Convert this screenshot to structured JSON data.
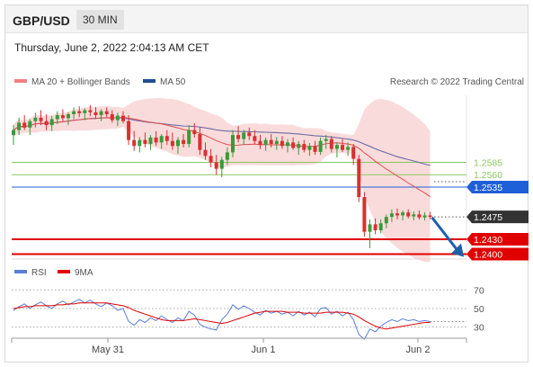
{
  "header": {
    "pair": "GBP/USD",
    "timeframe": "30 MIN"
  },
  "timestamp": "Thursday, June 2, 2022 2:04:13 AM CET",
  "legend": {
    "ma_bollinger": "MA 20 + Bollinger Bands",
    "ma50": "MA 50",
    "credit": "Research © 2022 Trading Central"
  },
  "rsi_legend": {
    "rsi": "RSI",
    "ma9": "9MA"
  },
  "colors": {
    "bollinger": "#f6c8c8",
    "ma20": "#e05050",
    "ma50": "#6a6aa8",
    "support": "#e00000",
    "pivot": "#1f5fd8",
    "resistance": "#8cc860",
    "up": "#3a9a3a",
    "down": "#d93030",
    "rsi": "#5b7fd9",
    "ma9": "#e00000"
  },
  "chart_data": [
    {
      "type": "candlestick",
      "title": "GBP/USD",
      "timeframe": "30 MIN",
      "x_tick_labels": [
        "May 31",
        "Jun 1",
        "Jun 2"
      ],
      "ylim": [
        1.239,
        1.272
      ],
      "price_levels": [
        {
          "value": 1.2585,
          "label": "1.2585",
          "kind": "resistance"
        },
        {
          "value": 1.256,
          "label": "1.2560",
          "kind": "resistance"
        },
        {
          "value": 1.2535,
          "label": "1.2535",
          "kind": "pivot"
        },
        {
          "value": 1.2475,
          "label": "1.2475",
          "kind": "last"
        },
        {
          "value": 1.243,
          "label": "1.2430",
          "kind": "support"
        },
        {
          "value": 1.24,
          "label": "1.2400",
          "kind": "support"
        }
      ],
      "ohlc": [
        [
          1.264,
          1.266,
          1.262,
          1.265
        ],
        [
          1.265,
          1.2675,
          1.264,
          1.2665
        ],
        [
          1.2665,
          1.268,
          1.265,
          1.2655
        ],
        [
          1.2655,
          1.2672,
          1.264,
          1.2668
        ],
        [
          1.2668,
          1.2685,
          1.2655,
          1.2675
        ],
        [
          1.2675,
          1.269,
          1.266,
          1.2668
        ],
        [
          1.2668,
          1.2682,
          1.265,
          1.266
        ],
        [
          1.266,
          1.2678,
          1.2648,
          1.2672
        ],
        [
          1.2672,
          1.2688,
          1.2662,
          1.268
        ],
        [
          1.268,
          1.2692,
          1.2668,
          1.2674
        ],
        [
          1.2674,
          1.2686,
          1.266,
          1.2682
        ],
        [
          1.2682,
          1.2696,
          1.2672,
          1.2688
        ],
        [
          1.2688,
          1.2698,
          1.2676,
          1.2684
        ],
        [
          1.2684,
          1.2694,
          1.267,
          1.269
        ],
        [
          1.269,
          1.27,
          1.2678,
          1.2686
        ],
        [
          1.2686,
          1.2696,
          1.2672,
          1.268
        ],
        [
          1.268,
          1.2692,
          1.2668,
          1.2688
        ],
        [
          1.2688,
          1.2696,
          1.2676,
          1.2682
        ],
        [
          1.2682,
          1.269,
          1.2665,
          1.267
        ],
        [
          1.267,
          1.2685,
          1.2658,
          1.2679
        ],
        [
          1.2679,
          1.2688,
          1.2664,
          1.2668
        ],
        [
          1.2668,
          1.268,
          1.262,
          1.263
        ],
        [
          1.263,
          1.2648,
          1.2608,
          1.2618
        ],
        [
          1.2618,
          1.2636,
          1.2605,
          1.263
        ],
        [
          1.263,
          1.2645,
          1.2615,
          1.2622
        ],
        [
          1.2622,
          1.264,
          1.261,
          1.2635
        ],
        [
          1.2635,
          1.2648,
          1.2618,
          1.2625
        ],
        [
          1.2625,
          1.2642,
          1.2612,
          1.2638
        ],
        [
          1.2638,
          1.265,
          1.262,
          1.2628
        ],
        [
          1.2628,
          1.2645,
          1.261,
          1.2618
        ],
        [
          1.2618,
          1.2636,
          1.2602,
          1.263
        ],
        [
          1.263,
          1.2642,
          1.2615,
          1.2622
        ],
        [
          1.2622,
          1.266,
          1.2615,
          1.265
        ],
        [
          1.265,
          1.2664,
          1.2635,
          1.2642
        ],
        [
          1.2642,
          1.2656,
          1.26,
          1.261
        ],
        [
          1.261,
          1.2625,
          1.259,
          1.2598
        ],
        [
          1.2598,
          1.2612,
          1.2575,
          1.2585
        ],
        [
          1.2585,
          1.26,
          1.256,
          1.2572
        ],
        [
          1.2572,
          1.2596,
          1.2555,
          1.259
        ],
        [
          1.259,
          1.2615,
          1.258,
          1.2605
        ],
        [
          1.2605,
          1.265,
          1.2595,
          1.264
        ],
        [
          1.264,
          1.2658,
          1.2625,
          1.2632
        ],
        [
          1.2632,
          1.265,
          1.262,
          1.2645
        ],
        [
          1.2645,
          1.2655,
          1.263,
          1.2638
        ],
        [
          1.2638,
          1.265,
          1.2622,
          1.2628
        ],
        [
          1.2628,
          1.264,
          1.2612,
          1.262
        ],
        [
          1.262,
          1.2635,
          1.2608,
          1.263
        ],
        [
          1.263,
          1.2642,
          1.2615,
          1.2622
        ],
        [
          1.2622,
          1.2636,
          1.261,
          1.2628
        ],
        [
          1.2628,
          1.2638,
          1.2612,
          1.2618
        ],
        [
          1.2618,
          1.2632,
          1.2605,
          1.2625
        ],
        [
          1.2625,
          1.2635,
          1.261,
          1.2614
        ],
        [
          1.2614,
          1.2628,
          1.26,
          1.2622
        ],
        [
          1.2622,
          1.263,
          1.2605,
          1.261
        ],
        [
          1.261,
          1.2624,
          1.2598,
          1.2618
        ],
        [
          1.2618,
          1.2628,
          1.26,
          1.2606
        ],
        [
          1.2606,
          1.2635,
          1.26,
          1.2628
        ],
        [
          1.2628,
          1.264,
          1.2612,
          1.2632
        ],
        [
          1.2632,
          1.2638,
          1.2605,
          1.2612
        ],
        [
          1.2612,
          1.2625,
          1.2595,
          1.262
        ],
        [
          1.262,
          1.2632,
          1.2606,
          1.261
        ],
        [
          1.261,
          1.2625,
          1.2598,
          1.2616
        ],
        [
          1.2616,
          1.2622,
          1.258,
          1.2592
        ],
        [
          1.2592,
          1.26,
          1.2505,
          1.2515
        ],
        [
          1.2515,
          1.2525,
          1.2435,
          1.2445
        ],
        [
          1.2445,
          1.247,
          1.2412,
          1.246
        ],
        [
          1.246,
          1.2472,
          1.244,
          1.2448
        ],
        [
          1.2448,
          1.247,
          1.2442,
          1.2462
        ],
        [
          1.2462,
          1.248,
          1.2452,
          1.2475
        ],
        [
          1.2475,
          1.249,
          1.2465,
          1.2482
        ],
        [
          1.2482,
          1.2492,
          1.247,
          1.2478
        ],
        [
          1.2478,
          1.2488,
          1.2468,
          1.2484
        ],
        [
          1.2484,
          1.249,
          1.2472,
          1.2476
        ],
        [
          1.2476,
          1.2486,
          1.2468,
          1.248
        ],
        [
          1.248,
          1.2488,
          1.247,
          1.2474
        ],
        [
          1.2474,
          1.2484,
          1.2468,
          1.2478
        ],
        [
          1.2478,
          1.2485,
          1.247,
          1.2475
        ]
      ]
    },
    {
      "type": "line",
      "title": "RSI",
      "series": [
        {
          "name": "RSI"
        },
        {
          "name": "9MA"
        }
      ],
      "ylim": [
        20,
        80
      ],
      "y_ticks": [
        70,
        50,
        30
      ],
      "rsi": [
        48,
        52,
        55,
        50,
        54,
        57,
        53,
        50,
        55,
        58,
        54,
        57,
        60,
        56,
        59,
        55,
        52,
        56,
        53,
        48,
        50,
        36,
        32,
        38,
        35,
        40,
        37,
        42,
        38,
        35,
        40,
        37,
        47,
        43,
        33,
        30,
        28,
        27,
        38,
        44,
        54,
        49,
        53,
        50,
        46,
        43,
        48,
        45,
        47,
        44,
        46,
        42,
        47,
        43,
        46,
        41,
        50,
        51,
        44,
        47,
        42,
        46,
        38,
        22,
        17,
        28,
        25,
        31,
        35,
        38,
        36,
        39,
        37,
        38,
        36,
        37,
        36
      ],
      "ma9": [
        50,
        51,
        52,
        52,
        53,
        53,
        53,
        53,
        54,
        54,
        55,
        55,
        56,
        56,
        56,
        56,
        56,
        56,
        55,
        54,
        53,
        51,
        48,
        46,
        44,
        42,
        40,
        38,
        37,
        37,
        37,
        37,
        38,
        39,
        38,
        37,
        36,
        35,
        34,
        35,
        37,
        39,
        41,
        43,
        45,
        46,
        47,
        47,
        47,
        47,
        46,
        46,
        46,
        45,
        45,
        45,
        45,
        46,
        46,
        46,
        46,
        45,
        44,
        41,
        37,
        34,
        31,
        29,
        28,
        29,
        30,
        31,
        32,
        33,
        34,
        35,
        35
      ]
    }
  ],
  "axis_labels": {
    "x1": "May 31",
    "x2": "Jun 1",
    "x3": "Jun 2"
  }
}
